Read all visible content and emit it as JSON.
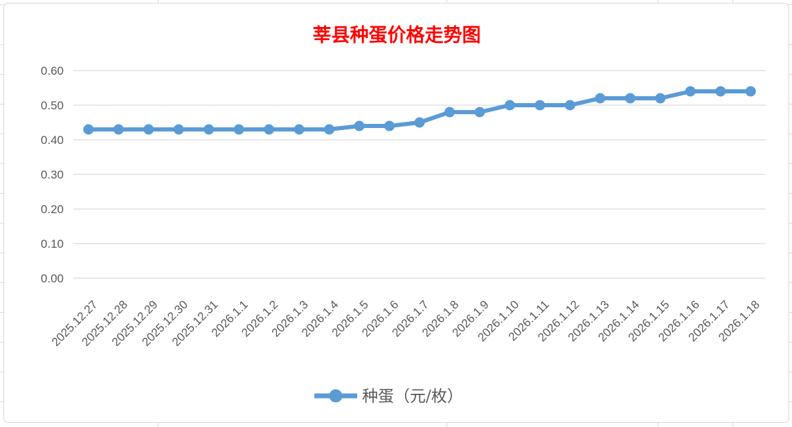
{
  "chart_data": {
    "type": "line",
    "title": "莘县种蛋价格走势图",
    "categories": [
      "2025.12.27",
      "2025.12.28",
      "2025.12.29",
      "2025.12.30",
      "2025.12.31",
      "2026.1.1",
      "2026.1.2",
      "2026.1.3",
      "2026.1.4",
      "2026.1.5",
      "2026.1.6",
      "2026.1.7",
      "2026.1.8",
      "2026.1.9",
      "2026.1.10",
      "2026.1.11",
      "2026.1.12",
      "2026.1.13",
      "2026.1.14",
      "2026.1.15",
      "2026.1.16",
      "2026.1.17",
      "2026.1.18"
    ],
    "series": [
      {
        "name": "种蛋（元/枚）",
        "values": [
          0.43,
          0.43,
          0.43,
          0.43,
          0.43,
          0.43,
          0.43,
          0.43,
          0.43,
          0.44,
          0.44,
          0.45,
          0.48,
          0.48,
          0.5,
          0.5,
          0.5,
          0.52,
          0.52,
          0.52,
          0.54,
          0.54,
          0.54
        ]
      }
    ],
    "xlabel": "",
    "ylabel": "",
    "ylim": [
      0.0,
      0.6
    ],
    "y_ticks": [
      "0.00",
      "0.10",
      "0.20",
      "0.30",
      "0.40",
      "0.50",
      "0.60"
    ],
    "grid": true,
    "x_label_rotation_deg": 45,
    "legend_position": "bottom",
    "colors": {
      "series": "#5B9BD5",
      "title": "#FF0000",
      "axis_text": "#595959",
      "gridline": "#D9D9D9"
    }
  }
}
